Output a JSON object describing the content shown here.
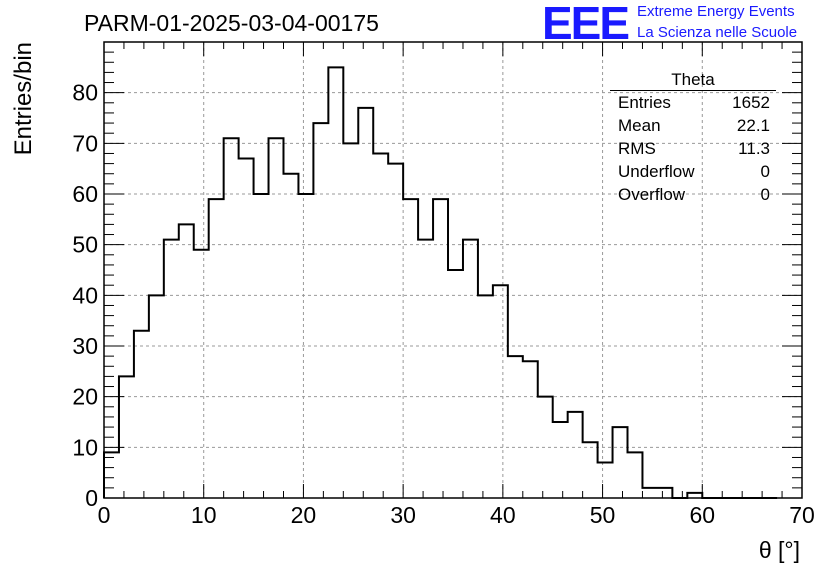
{
  "title": "PARM-01-2025-03-04-00175",
  "logo": {
    "mark": "EEE",
    "line1": "Extreme Energy Events",
    "line2": "La Scienza nelle Scuole",
    "color": "#1a1aff"
  },
  "stats": {
    "title": "Theta",
    "rows": [
      {
        "key": "Entries",
        "value": "1652"
      },
      {
        "key": "Mean",
        "value": "22.1"
      },
      {
        "key": "RMS",
        "value": "11.3"
      },
      {
        "key": "Underflow",
        "value": "0"
      },
      {
        "key": "Overflow",
        "value": "0"
      }
    ]
  },
  "chart_data": {
    "type": "histogram",
    "title": "PARM-01-2025-03-04-00175",
    "xlabel": "θ [°]",
    "ylabel": "Entries/bin",
    "xlim": [
      0,
      70
    ],
    "ylim": [
      0,
      90
    ],
    "grid": true,
    "bin_width": 1.5,
    "x_ticks": [
      0,
      10,
      20,
      30,
      40,
      50,
      60,
      70
    ],
    "y_ticks": [
      0,
      10,
      20,
      30,
      40,
      50,
      60,
      70,
      80
    ],
    "bin_edges": [
      0,
      1.5,
      3,
      4.5,
      6,
      7.5,
      9,
      10.5,
      12,
      13.5,
      15,
      16.5,
      18,
      19.5,
      21,
      22.5,
      24,
      25.5,
      27,
      28.5,
      30,
      31.5,
      33,
      34.5,
      36,
      37.5,
      39,
      40.5,
      42,
      43.5,
      45,
      46.5,
      48,
      49.5,
      51,
      52.5,
      54,
      55.5,
      57,
      58.5,
      60,
      61.5,
      63,
      64.5,
      66,
      67.5
    ],
    "values": [
      9,
      24,
      33,
      40,
      51,
      54,
      49,
      59,
      71,
      67,
      60,
      71,
      64,
      60,
      74,
      85,
      70,
      77,
      68,
      66,
      59,
      51,
      59,
      45,
      51,
      40,
      42,
      28,
      27,
      20,
      15,
      17,
      11,
      7,
      14,
      9,
      2,
      2,
      0,
      1,
      0,
      0,
      0,
      0,
      0
    ],
    "color": "#000000"
  }
}
